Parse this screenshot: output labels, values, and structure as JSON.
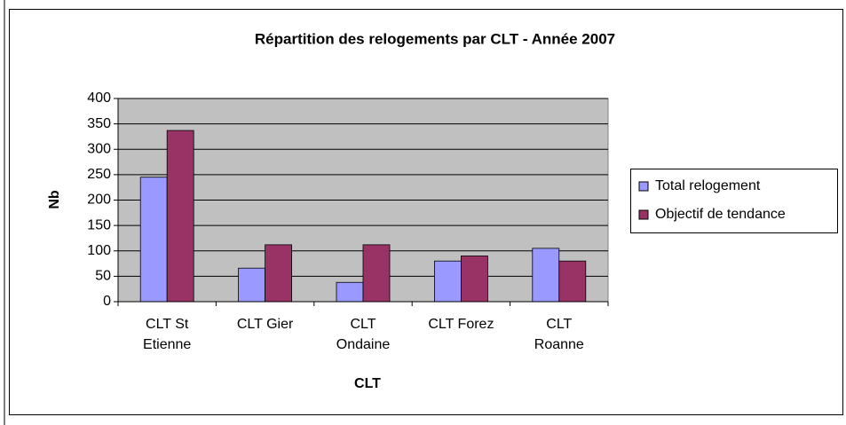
{
  "chart_data": {
    "type": "bar",
    "title": "Répartition des relogements par CLT - Année 2007",
    "x_label": "CLT",
    "y_label": "Nb",
    "categories": [
      "CLT St Etienne",
      "CLT Gier",
      "CLT Ondaine",
      "CLT Forez",
      "CLT Roanne"
    ],
    "series": [
      {
        "name": "Total relogement",
        "color": "#9999ff",
        "values": [
          245,
          66,
          38,
          80,
          105
        ]
      },
      {
        "name": "Objectif de tendance",
        "color": "#993366",
        "values": [
          337,
          112,
          112,
          90,
          80
        ]
      }
    ],
    "ylim": [
      0,
      400
    ],
    "yticks": [
      0,
      50,
      100,
      150,
      200,
      250,
      300,
      350,
      400
    ],
    "grid": true,
    "legend": "right"
  }
}
